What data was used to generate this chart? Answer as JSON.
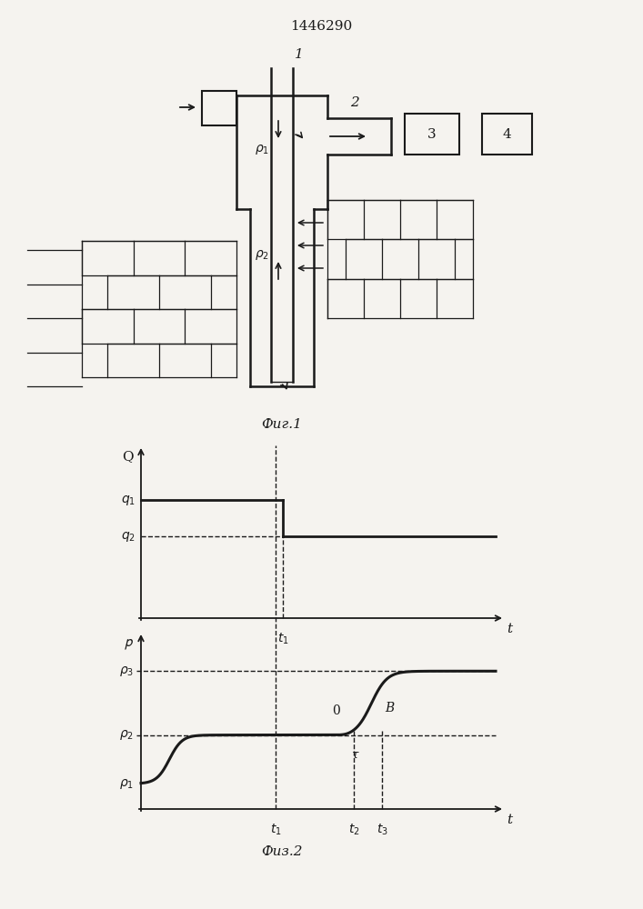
{
  "title": "1446290",
  "fig1_caption": "Фиг.1",
  "fig2_caption": "Физ.2",
  "background_color": "#f5f3ef",
  "line_color": "#1a1a1a",
  "q_plot": {
    "q1_val": 0.72,
    "q2_val": 0.5,
    "t1_val": 0.4
  },
  "p_plot": {
    "p1_val": 0.15,
    "p2_val": 0.44,
    "p3_val": 0.82,
    "t1_val": 0.38,
    "t2_val": 0.6,
    "t3_val": 0.68
  }
}
